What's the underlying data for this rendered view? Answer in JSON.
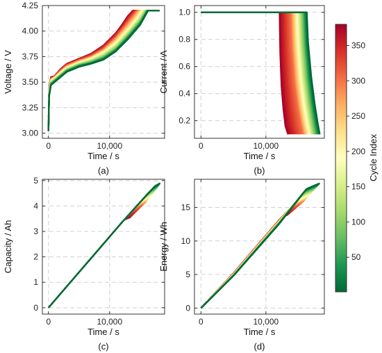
{
  "colors": {
    "colormap": [
      "#006837",
      "#1a9850",
      "#66bd63",
      "#a6d96a",
      "#d9ef8b",
      "#ffffbf",
      "#fee08b",
      "#fdae61",
      "#f46d43",
      "#d73027",
      "#a50026"
    ]
  },
  "colorbar": {
    "label": "Cycle Index",
    "range": [
      1,
      380
    ],
    "ticks": [
      50,
      100,
      150,
      200,
      250,
      300,
      350
    ]
  },
  "chart_data": [
    {
      "type": "line",
      "panel": "(a)",
      "xlabel": "Time / s",
      "ylabel": "Voltage / V",
      "xlim": [
        -1000,
        19000
      ],
      "ylim": [
        2.95,
        4.25
      ],
      "xticks": [
        0,
        10000
      ],
      "xtick_labels": [
        "0",
        "10,000"
      ],
      "yticks": [
        3.0,
        3.25,
        3.5,
        3.75,
        4.0,
        4.25
      ],
      "ytick_labels": [
        "3.00",
        "3.25",
        "3.50",
        "3.75",
        "4.00",
        "4.25"
      ],
      "grid": true,
      "series": [
        {
          "cycle": 1,
          "x": [
            0,
            100,
            400,
            1000,
            2000,
            3000,
            5000,
            7000,
            9000,
            11000,
            13000,
            15000,
            16300,
            17500,
            18200
          ],
          "y": [
            3.02,
            3.36,
            3.47,
            3.5,
            3.55,
            3.6,
            3.65,
            3.68,
            3.72,
            3.8,
            3.92,
            4.06,
            4.2,
            4.2,
            4.2
          ]
        },
        {
          "cycle": 100,
          "x": [
            0,
            100,
            400,
            1000,
            2000,
            3000,
            5000,
            7000,
            9000,
            11000,
            13000,
            15000,
            16000,
            17500
          ],
          "y": [
            3.03,
            3.38,
            3.49,
            3.52,
            3.57,
            3.62,
            3.67,
            3.7,
            3.75,
            3.83,
            3.96,
            4.1,
            4.2,
            4.2
          ]
        },
        {
          "cycle": 200,
          "x": [
            0,
            100,
            400,
            1000,
            2000,
            3000,
            5000,
            7000,
            9000,
            11000,
            13000,
            14500,
            15400,
            17000
          ],
          "y": [
            3.04,
            3.4,
            3.51,
            3.54,
            3.59,
            3.64,
            3.69,
            3.73,
            3.79,
            3.88,
            4.01,
            4.12,
            4.2,
            4.2
          ]
        },
        {
          "cycle": 300,
          "x": [
            0,
            100,
            400,
            1000,
            2000,
            3000,
            5000,
            7000,
            9000,
            11000,
            12500,
            13800,
            14600,
            16500
          ],
          "y": [
            3.05,
            3.42,
            3.53,
            3.55,
            3.61,
            3.66,
            3.71,
            3.75,
            3.82,
            3.93,
            4.04,
            4.14,
            4.2,
            4.2
          ]
        },
        {
          "cycle": 380,
          "x": [
            0,
            100,
            400,
            1000,
            2000,
            3000,
            5000,
            7000,
            9000,
            11000,
            12000,
            13000,
            13800,
            16000
          ],
          "y": [
            3.06,
            3.44,
            3.55,
            3.56,
            3.63,
            3.68,
            3.73,
            3.78,
            3.86,
            3.98,
            4.06,
            4.15,
            4.2,
            4.2
          ]
        }
      ]
    },
    {
      "type": "line",
      "panel": "(b)",
      "xlabel": "Time / s",
      "ylabel": "Current / A",
      "xlim": [
        -1000,
        19000
      ],
      "ylim": [
        0.07,
        1.05
      ],
      "xticks": [
        0,
        10000
      ],
      "xtick_labels": [
        "0",
        "10,000"
      ],
      "yticks": [
        0.2,
        0.4,
        0.6,
        0.8,
        1.0
      ],
      "ytick_labels": [
        "0.2",
        "0.4",
        "0.6",
        "0.8",
        "1.0"
      ],
      "grid": true,
      "series": [
        {
          "cycle": 1,
          "x": [
            0,
            16300,
            16500,
            17000,
            17500,
            18000,
            18300
          ],
          "y": [
            1.0,
            1.0,
            0.78,
            0.52,
            0.33,
            0.18,
            0.1
          ]
        },
        {
          "cycle": 100,
          "x": [
            0,
            15600,
            15800,
            16200,
            16700,
            17200,
            17500
          ],
          "y": [
            1.0,
            1.0,
            0.76,
            0.52,
            0.33,
            0.18,
            0.1
          ]
        },
        {
          "cycle": 200,
          "x": [
            0,
            14800,
            15000,
            15400,
            15900,
            16400,
            16700
          ],
          "y": [
            1.0,
            1.0,
            0.75,
            0.5,
            0.31,
            0.17,
            0.1
          ]
        },
        {
          "cycle": 300,
          "x": [
            0,
            13900,
            14100,
            14500,
            15000,
            15500,
            15800
          ],
          "y": [
            1.0,
            1.0,
            0.73,
            0.48,
            0.3,
            0.17,
            0.1
          ]
        },
        {
          "cycle": 380,
          "x": [
            0,
            12100,
            12200,
            12400,
            12700,
            13000,
            13400
          ],
          "y": [
            1.0,
            1.0,
            0.7,
            0.45,
            0.28,
            0.16,
            0.1
          ]
        }
      ]
    },
    {
      "type": "line",
      "panel": "(c)",
      "xlabel": "Time / s",
      "ylabel": "Capacity / Ah",
      "xlim": [
        -1000,
        19000
      ],
      "ylim": [
        -0.25,
        5.05
      ],
      "xticks": [
        0,
        10000
      ],
      "xtick_labels": [
        "0",
        "10,000"
      ],
      "yticks": [
        0,
        1,
        2,
        3,
        4,
        5
      ],
      "ytick_labels": [
        "0",
        "1",
        "2",
        "3",
        "4",
        "5"
      ],
      "grid": true,
      "series": [
        {
          "cycle": 1,
          "x": [
            0,
            12000,
            16300,
            17500,
            18300
          ],
          "y": [
            0,
            3.35,
            4.5,
            4.8,
            4.9
          ]
        },
        {
          "cycle": 100,
          "x": [
            0,
            12000,
            15600,
            16700,
            17500
          ],
          "y": [
            0,
            3.35,
            4.3,
            4.55,
            4.65
          ]
        },
        {
          "cycle": 200,
          "x": [
            0,
            12000,
            14800,
            15900,
            16700
          ],
          "y": [
            0,
            3.35,
            4.1,
            4.3,
            4.4
          ]
        },
        {
          "cycle": 300,
          "x": [
            0,
            12000,
            13900,
            15000,
            15800
          ],
          "y": [
            0,
            3.35,
            3.85,
            4.05,
            4.12
          ]
        },
        {
          "cycle": 380,
          "x": [
            0,
            12100,
            12400,
            13000,
            13400
          ],
          "y": [
            0,
            3.38,
            3.45,
            3.52,
            3.55
          ]
        }
      ]
    },
    {
      "type": "line",
      "panel": "(d)",
      "xlabel": "Time / s",
      "ylabel": "Energy / Wh",
      "xlim": [
        -1000,
        19000
      ],
      "ylim": [
        -0.9,
        19.2
      ],
      "xticks": [
        0,
        10000
      ],
      "xtick_labels": [
        "0",
        "10,000"
      ],
      "yticks": [
        0,
        5,
        10,
        15
      ],
      "ytick_labels": [
        "0",
        "5",
        "10",
        "15"
      ],
      "grid": true,
      "series": [
        {
          "cycle": 1,
          "x": [
            0,
            5000,
            12000,
            16300,
            17500,
            18300
          ],
          "y": [
            0,
            4.8,
            12.5,
            17.8,
            18.3,
            18.6
          ]
        },
        {
          "cycle": 100,
          "x": [
            0,
            5000,
            12000,
            15600,
            16700,
            17500
          ],
          "y": [
            0,
            4.9,
            12.7,
            17.0,
            17.5,
            17.8
          ]
        },
        {
          "cycle": 200,
          "x": [
            0,
            5000,
            12000,
            14800,
            15900,
            16700
          ],
          "y": [
            0,
            5.0,
            12.8,
            16.0,
            16.6,
            16.9
          ]
        },
        {
          "cycle": 300,
          "x": [
            0,
            5000,
            12000,
            13900,
            15000,
            15800
          ],
          "y": [
            0,
            5.1,
            13.0,
            15.0,
            15.6,
            15.9
          ]
        },
        {
          "cycle": 380,
          "x": [
            0,
            5000,
            12100,
            12400,
            13000,
            13400
          ],
          "y": [
            0,
            5.2,
            13.2,
            13.5,
            13.8,
            13.9
          ]
        }
      ]
    }
  ]
}
